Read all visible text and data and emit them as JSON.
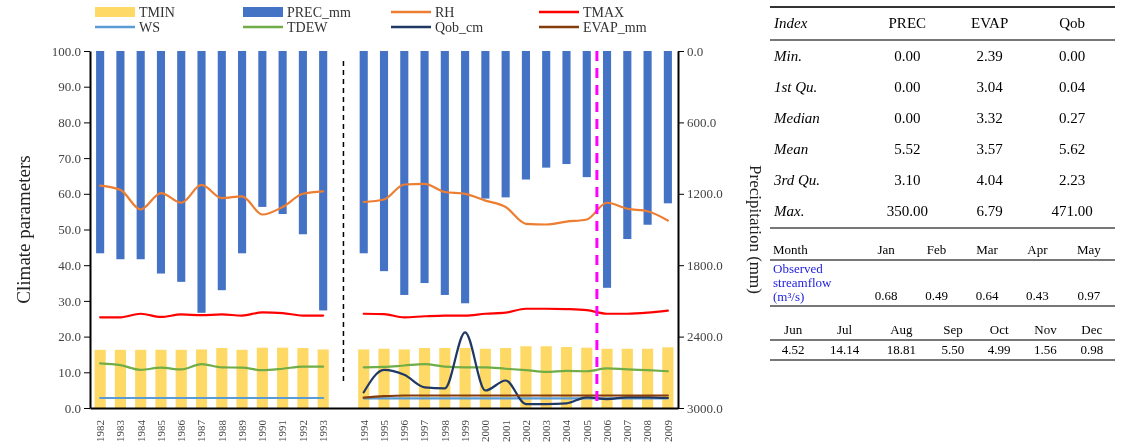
{
  "chart_data": [
    {
      "type": "bar",
      "ylabel": "Climate parameters",
      "y2label": "Precipitation (mm)",
      "categories": [
        "1982",
        "1983",
        "1984",
        "1985",
        "1986",
        "1987",
        "1988",
        "1989",
        "1990",
        "1991",
        "1992",
        "1993",
        null,
        "1994",
        "1995",
        "1996",
        "1997",
        "1998",
        "1999",
        "2000",
        "2001",
        "2002",
        "2003",
        "2004",
        "2005",
        "2006",
        "2007",
        "2008",
        "2009"
      ],
      "series": [
        {
          "name": "TMIN",
          "color": "#ffd966",
          "values": [
            16.3,
            16.3,
            16.3,
            16.3,
            16.3,
            16.4,
            16.8,
            16.3,
            16.9,
            16.9,
            16.8,
            16.4,
            null,
            16.4,
            16.6,
            16.4,
            16.8,
            16.8,
            16.8,
            16.6,
            16.8,
            17.3,
            17.3,
            17.1,
            16.9,
            16.6,
            16.6,
            16.6,
            17.0
          ]
        },
        {
          "name": "PREC_mm",
          "axis": "y2",
          "color": "#4472c4",
          "values": [
            1700,
            1750,
            1750,
            1870,
            1940,
            2200,
            2010,
            1700,
            1310,
            1370,
            1540,
            2180,
            null,
            1700,
            1850,
            2050,
            1950,
            2050,
            2120,
            1240,
            1230,
            1080,
            980,
            950,
            1060,
            1990,
            1580,
            1460,
            1280
          ]
        },
        {
          "name": "RH",
          "type": "line",
          "color": "#ed7d31",
          "values": [
            62.3,
            61.1,
            55.6,
            60.2,
            57.5,
            62.5,
            58.8,
            59.3,
            54.2,
            56.3,
            60.0,
            60.7,
            null,
            57.7,
            58.4,
            62.6,
            62.8,
            60.5,
            60.0,
            58.1,
            56.3,
            51.6,
            51.4,
            52.2,
            52.8,
            57.5,
            55.8,
            55.1,
            52.5
          ]
        },
        {
          "name": "TMAX",
          "type": "line",
          "color": "#ff0000",
          "values": [
            25.4,
            25.4,
            26.4,
            25.5,
            26.2,
            26.0,
            26.2,
            25.9,
            26.8,
            26.6,
            25.9,
            25.9,
            null,
            26.4,
            26.3,
            25.4,
            25.7,
            25.9,
            25.9,
            26.4,
            26.7,
            27.8,
            27.8,
            27.7,
            27.4,
            26.4,
            26.4,
            26.7,
            27.3
          ]
        },
        {
          "name": "WS",
          "type": "line",
          "color": "#5b9bd5",
          "values": [
            2.8,
            2.8,
            2.8,
            2.8,
            2.8,
            2.8,
            2.8,
            2.8,
            2.8,
            2.8,
            2.8,
            2.8,
            null,
            2.7,
            2.7,
            2.7,
            2.7,
            2.7,
            2.7,
            2.7,
            2.7,
            2.7,
            2.7,
            2.7,
            2.7,
            2.7,
            2.7,
            2.7,
            2.7
          ]
        },
        {
          "name": "TDEW",
          "type": "line",
          "color": "#70ad47",
          "values": [
            12.5,
            12.0,
            10.7,
            11.3,
            10.8,
            12.3,
            11.4,
            11.3,
            10.6,
            11.0,
            11.6,
            11.6,
            null,
            11.4,
            11.5,
            11.9,
            12.3,
            11.6,
            11.4,
            11.4,
            11.0,
            10.6,
            10.1,
            10.4,
            10.3,
            11.1,
            10.8,
            10.6,
            10.3
          ]
        },
        {
          "name": "Qob_cm",
          "type": "line",
          "color": "#203864",
          "values": [
            null,
            null,
            null,
            null,
            null,
            null,
            null,
            null,
            null,
            null,
            null,
            null,
            null,
            4.4,
            10.7,
            9.3,
            5.8,
            5.5,
            21.2,
            4.9,
            7.7,
            1.1,
            1.1,
            1.3,
            3.0,
            2.5,
            3.0,
            3.0,
            2.8
          ]
        },
        {
          "name": "EVAP_mm",
          "type": "line",
          "color": "#843c0c",
          "values": [
            null,
            null,
            null,
            null,
            null,
            null,
            null,
            null,
            null,
            null,
            null,
            null,
            null,
            2.9,
            3.3,
            3.5,
            3.5,
            3.5,
            3.5,
            3.5,
            3.5,
            3.5,
            3.5,
            3.5,
            3.5,
            3.5,
            3.5,
            3.5,
            3.5
          ]
        }
      ],
      "ylim": [
        0,
        100
      ],
      "yticks": [
        {
          "value": 0,
          "label": "0.0"
        },
        {
          "value": 10,
          "label": "10.0"
        },
        {
          "value": 20,
          "label": "20.0"
        },
        {
          "value": 30,
          "label": "30.0"
        },
        {
          "value": 40,
          "label": "40.0"
        },
        {
          "value": 50,
          "label": "50.0"
        },
        {
          "value": 60,
          "label": "60.0"
        },
        {
          "value": 70,
          "label": "70.0"
        },
        {
          "value": 80,
          "label": "80.0"
        },
        {
          "value": 90,
          "label": "90.0"
        },
        {
          "value": 100,
          "label": "100.0"
        }
      ],
      "y2lim": [
        3000,
        0
      ],
      "y2ticks": [
        {
          "value": 0,
          "label": "0.0"
        },
        {
          "value": 600,
          "label": "600.0"
        },
        {
          "value": 1200,
          "label": "1200.0"
        },
        {
          "value": 1800,
          "label": "1800.0"
        },
        {
          "value": 2400,
          "label": "2400.0"
        },
        {
          "value": 3000,
          "label": "3000.0"
        }
      ],
      "ref_lines": [
        {
          "axis": "x",
          "value": "2006",
          "color": "#ff00ff",
          "line_style": "dashed"
        }
      ],
      "grid": false,
      "legend": "top",
      "marker": "none",
      "line_style": "solid"
    },
    {
      "type": "other",
      "annotations": [
        "Index",
        "PREC",
        "EVAP",
        "Qob",
        "Min.",
        "0.00",
        "2.39",
        "0.00",
        "1st Qu.",
        "0.00",
        "3.04",
        "0.04",
        "Median",
        "0.00",
        "3.32",
        "0.27",
        "Mean",
        "5.52",
        "3.57",
        "5.62",
        "3rd Qu.",
        "3.10",
        "4.04",
        "2.23",
        "Max.",
        "350.00",
        "6.79",
        "471.00",
        "Month",
        "Jan",
        "Feb",
        "Mar",
        "Apr",
        "May",
        "Observed streamflow (m³/s)",
        "0.68",
        "0.49",
        "0.64",
        "0.43",
        "0.97",
        "Jun",
        "Jul",
        "Aug",
        "Sep",
        "Oct",
        "Nov",
        "Dec",
        "4.52",
        "14.14",
        "18.81",
        "5.50",
        "4.99",
        "1.56",
        "0.98"
      ]
    }
  ]
}
